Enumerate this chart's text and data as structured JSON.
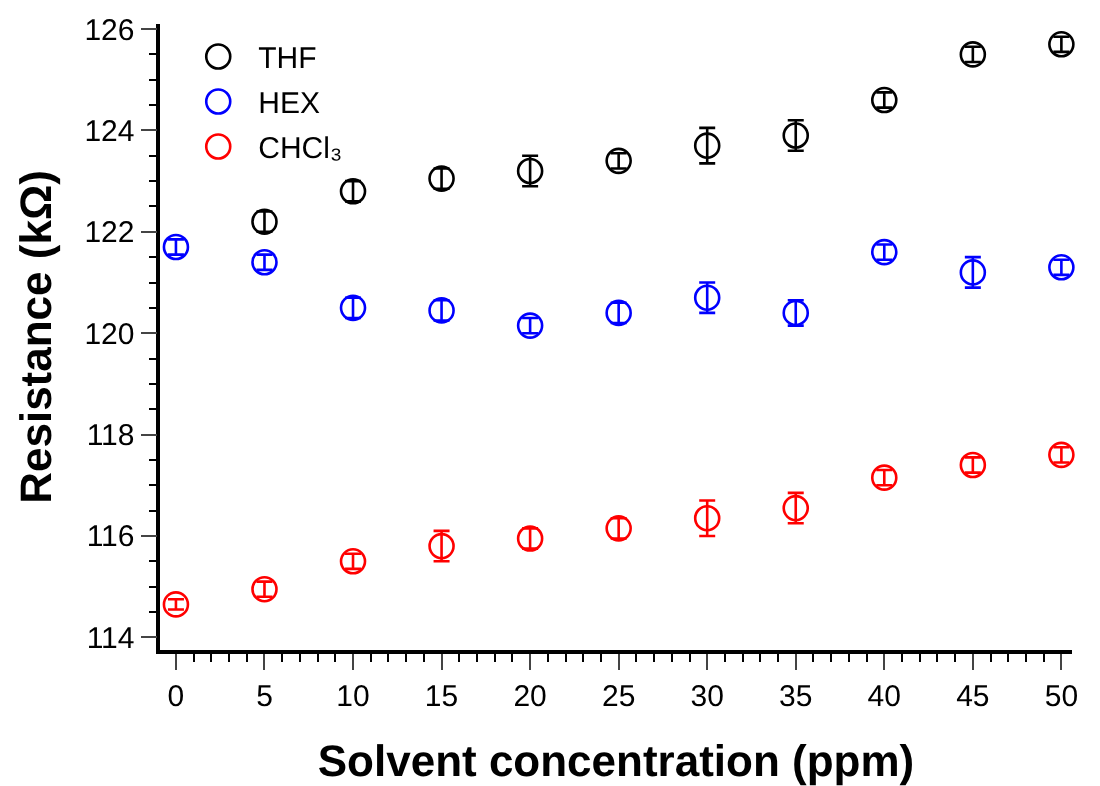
{
  "chart_data": {
    "type": "scatter",
    "xlabel": "Solvent concentration (ppm)",
    "ylabel": "Resistance (kΩ)",
    "x": [
      0,
      5,
      10,
      15,
      20,
      25,
      30,
      35,
      40,
      45,
      50
    ],
    "series": [
      {
        "name": "THF",
        "color": "#000000",
        "values": [
          null,
          122.2,
          122.8,
          123.05,
          123.2,
          123.4,
          123.7,
          123.9,
          124.6,
          125.5,
          125.7
        ],
        "errors": [
          null,
          0.2,
          0.2,
          0.2,
          0.3,
          0.15,
          0.35,
          0.3,
          0.15,
          0.15,
          0.15
        ]
      },
      {
        "name": "HEX",
        "color": "#0000ff",
        "values": [
          121.7,
          121.4,
          120.5,
          120.45,
          120.15,
          120.4,
          120.7,
          120.4,
          121.6,
          121.2,
          121.3
        ],
        "errors": [
          0.15,
          0.15,
          0.2,
          0.2,
          0.15,
          0.2,
          0.3,
          0.25,
          0.15,
          0.3,
          0.15
        ]
      },
      {
        "name": "CHCl₃",
        "color": "#ff0000",
        "values": [
          114.65,
          114.95,
          115.5,
          115.8,
          115.95,
          116.15,
          116.35,
          116.55,
          117.15,
          117.4,
          117.6
        ],
        "errors": [
          0.1,
          0.15,
          0.15,
          0.3,
          0.2,
          0.2,
          0.35,
          0.3,
          0.15,
          0.15,
          0.15
        ]
      }
    ],
    "xlim": [
      -0.9,
      50.6
    ],
    "xticks": [
      0,
      5,
      10,
      15,
      20,
      25,
      30,
      35,
      40,
      45,
      50
    ],
    "ylim": [
      113.75,
      126.1
    ],
    "yticks": [
      114,
      116,
      118,
      120,
      122,
      124,
      126
    ],
    "grid": false,
    "legend": "top left"
  }
}
